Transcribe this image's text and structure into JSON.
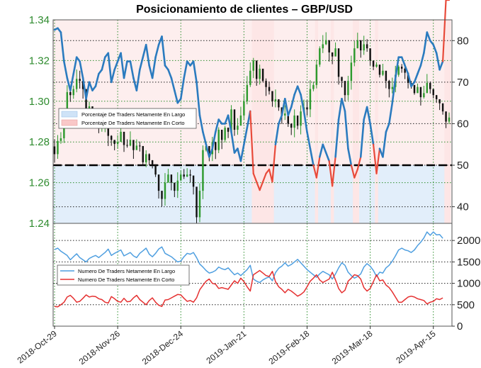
{
  "chart_data": [
    {
      "type": "candlestick-with-line-overlay",
      "title": "Posicionamiento de clientes – GBP/USD",
      "left_axis": {
        "label": "",
        "ylim": [
          1.24,
          1.34
        ],
        "ticks": [
          "1.24",
          "1.26",
          "1.28",
          "1.30",
          "1.32",
          "1.34"
        ]
      },
      "right_axis": {
        "label": "",
        "ylim": [
          36,
          85
        ],
        "ticks": [
          "40",
          "50",
          "60",
          "70",
          "80"
        ]
      },
      "x_ticks": [
        "2018-Oct-29",
        "2018-Nov-26",
        "2018-Dec-24",
        "2019-Jan-21",
        "2019-Feb-18",
        "2019-Mar-18",
        "2019-Apr-15"
      ],
      "x_tick_index": [
        0,
        20,
        40,
        60,
        80,
        100,
        120
      ],
      "reference_line": 50,
      "legend": [
        "Porcentaje De Traders Netamente En Largo",
        "Porcentaje De Traders Netamente En Corto"
      ],
      "legend_position": "upper-left",
      "series_net_long_pct": [
        82.6,
        83,
        82,
        75,
        71,
        68,
        72,
        76,
        75,
        71,
        66,
        70,
        68,
        69,
        72,
        73,
        76,
        77,
        70,
        73,
        75,
        77,
        71,
        75,
        75,
        71,
        68,
        73,
        76,
        79,
        74,
        71,
        76,
        79,
        81,
        74,
        73,
        71,
        68,
        65,
        66,
        71,
        75,
        74,
        75,
        70,
        62,
        58,
        55,
        52,
        54,
        58,
        61,
        60,
        60,
        62,
        58,
        53,
        54,
        51,
        55,
        59,
        63,
        48,
        46,
        44,
        46,
        48,
        49,
        46,
        55,
        60,
        62,
        66,
        62,
        64,
        67,
        69,
        67,
        63,
        58,
        54,
        50,
        47,
        52,
        55,
        53,
        51,
        45,
        52,
        61,
        66,
        63,
        54,
        50,
        47,
        49,
        52,
        61,
        64,
        60,
        55,
        48,
        54,
        52,
        58,
        60,
        65,
        71,
        76,
        76,
        74,
        72,
        69,
        70,
        72,
        74,
        77,
        82,
        80,
        79,
        77,
        73,
        75
      ],
      "candles": [
        [
          1.2778,
          1.274,
          1.2812,
          1.2698
        ],
        [
          1.274,
          1.2805,
          1.2834,
          1.2717
        ],
        [
          1.2805,
          1.2818,
          1.2848,
          1.2791
        ],
        [
          1.2818,
          1.2922,
          1.2963,
          1.2795
        ],
        [
          1.2922,
          1.3045,
          1.3079,
          1.2892
        ],
        [
          1.3045,
          1.303,
          1.3058,
          1.2997
        ],
        [
          1.303,
          1.306,
          1.3077,
          1.3012
        ],
        [
          1.306,
          1.311,
          1.3156,
          1.3044
        ],
        [
          1.311,
          1.31,
          1.315,
          1.3062
        ],
        [
          1.31,
          1.306,
          1.3081,
          1.3013
        ],
        [
          1.306,
          1.296,
          1.298,
          1.2931
        ],
        [
          1.296,
          1.2975,
          1.2998,
          1.2944
        ],
        [
          1.2975,
          1.2925,
          1.2966,
          1.2902
        ],
        [
          1.2925,
          1.288,
          1.2948,
          1.2868
        ],
        [
          1.288,
          1.287,
          1.2911,
          1.2843
        ],
        [
          1.287,
          1.2875,
          1.2902,
          1.285
        ],
        [
          1.2875,
          1.289,
          1.2909,
          1.2848
        ],
        [
          1.289,
          1.283,
          1.285,
          1.278
        ],
        [
          1.283,
          1.281,
          1.2833,
          1.2781
        ],
        [
          1.281,
          1.279,
          1.2801,
          1.2759
        ],
        [
          1.279,
          1.28,
          1.2833,
          1.2766
        ],
        [
          1.28,
          1.285,
          1.2874,
          1.283
        ],
        [
          1.285,
          1.2785,
          1.2799,
          1.2751
        ],
        [
          1.2785,
          1.2782,
          1.2813,
          1.2772
        ],
        [
          1.2782,
          1.281,
          1.2852,
          1.2779
        ],
        [
          1.281,
          1.276,
          1.2795,
          1.2717
        ],
        [
          1.276,
          1.2782,
          1.2813,
          1.2772
        ],
        [
          1.2782,
          1.278,
          1.2802,
          1.2753
        ],
        [
          1.278,
          1.27,
          1.2726,
          1.2682
        ],
        [
          1.27,
          1.274,
          1.2759,
          1.2676
        ],
        [
          1.274,
          1.271,
          1.2744,
          1.2686
        ],
        [
          1.271,
          1.269,
          1.2711,
          1.267
        ],
        [
          1.269,
          1.264,
          1.2687,
          1.2628
        ],
        [
          1.264,
          1.256,
          1.2579,
          1.2522
        ],
        [
          1.256,
          1.252,
          1.2554,
          1.2483
        ],
        [
          1.252,
          1.26,
          1.2647,
          1.2487
        ],
        [
          1.26,
          1.264,
          1.2668,
          1.2613
        ],
        [
          1.264,
          1.26,
          1.2617,
          1.2562
        ],
        [
          1.26,
          1.256,
          1.2578,
          1.2529
        ],
        [
          1.256,
          1.261,
          1.2651,
          1.2525
        ],
        [
          1.261,
          1.264,
          1.2658,
          1.262
        ],
        [
          1.264,
          1.263,
          1.2667,
          1.2618
        ],
        [
          1.263,
          1.264,
          1.2671,
          1.2627
        ],
        [
          1.264,
          1.2635,
          1.2664,
          1.26
        ],
        [
          1.2635,
          1.258,
          1.2621,
          1.2542
        ],
        [
          1.258,
          1.243,
          1.2448,
          1.2397
        ],
        [
          1.243,
          1.256,
          1.2597,
          1.2406
        ],
        [
          1.256,
          1.276,
          1.2783,
          1.2519
        ],
        [
          1.276,
          1.278,
          1.28,
          1.2753
        ],
        [
          1.278,
          1.274,
          1.2749,
          1.2705
        ],
        [
          1.274,
          1.28,
          1.2825,
          1.2706
        ],
        [
          1.28,
          1.276,
          1.2789,
          1.2716
        ],
        [
          1.276,
          1.286,
          1.2872,
          1.2745
        ],
        [
          1.286,
          1.281,
          1.2858,
          1.2765
        ],
        [
          1.281,
          1.287,
          1.2879,
          1.2798
        ],
        [
          1.287,
          1.285,
          1.2871,
          1.2819
        ],
        [
          1.285,
          1.296,
          1.2981,
          1.283
        ],
        [
          1.296,
          1.286,
          1.2875,
          1.283
        ],
        [
          1.286,
          1.288,
          1.2917,
          1.2835
        ],
        [
          1.288,
          1.293,
          1.2973,
          1.289
        ],
        [
          1.293,
          1.3,
          1.3032,
          1.2907
        ],
        [
          1.3,
          1.308,
          1.3124,
          1.2985
        ],
        [
          1.308,
          1.315,
          1.3191,
          1.307
        ],
        [
          1.315,
          1.32,
          1.3213,
          1.3114
        ],
        [
          1.32,
          1.311,
          1.3156,
          1.3076
        ],
        [
          1.311,
          1.316,
          1.318,
          1.3082
        ],
        [
          1.316,
          1.31,
          1.3133,
          1.3093
        ],
        [
          1.31,
          1.307,
          1.3112,
          1.3026
        ],
        [
          1.307,
          1.305,
          1.3097,
          1.3033
        ],
        [
          1.305,
          1.3,
          1.3037,
          1.2973
        ],
        [
          1.3,
          1.301,
          1.3058,
          1.297
        ],
        [
          1.301,
          1.297,
          1.2983,
          1.2953
        ],
        [
          1.297,
          1.293,
          1.297,
          1.2889
        ],
        [
          1.293,
          1.294,
          1.298,
          1.2908
        ],
        [
          1.294,
          1.289,
          1.2922,
          1.2874
        ],
        [
          1.289,
          1.287,
          1.289,
          1.2834
        ],
        [
          1.287,
          1.293,
          1.296,
          1.2823
        ],
        [
          1.293,
          1.288,
          1.2907,
          1.2862
        ],
        [
          1.288,
          1.295,
          1.298,
          1.2837
        ],
        [
          1.295,
          1.297,
          1.3008,
          1.2936
        ],
        [
          1.297,
          1.296,
          1.3005,
          1.2929
        ],
        [
          1.296,
          1.306,
          1.3104,
          1.2922
        ],
        [
          1.306,
          1.308,
          1.3096,
          1.3049
        ],
        [
          1.308,
          1.318,
          1.3204,
          1.3063
        ],
        [
          1.318,
          1.326,
          1.327,
          1.3169
        ],
        [
          1.326,
          1.328,
          1.3325,
          1.3237
        ],
        [
          1.328,
          1.33,
          1.3339,
          1.3276
        ],
        [
          1.33,
          1.324,
          1.3266,
          1.3195
        ],
        [
          1.324,
          1.322,
          1.324,
          1.3182
        ],
        [
          1.322,
          1.326,
          1.3289,
          1.3248
        ],
        [
          1.326,
          1.312,
          1.3166,
          1.3082
        ],
        [
          1.312,
          1.31,
          1.3117,
          1.3068
        ],
        [
          1.31,
          1.303,
          1.3045,
          1.2999
        ],
        [
          1.303,
          1.31,
          1.3125,
          1.3004
        ],
        [
          1.31,
          1.319,
          1.3224,
          1.3057
        ],
        [
          1.319,
          1.326,
          1.3296,
          1.3172
        ],
        [
          1.326,
          1.33,
          1.3337,
          1.3276
        ],
        [
          1.33,
          1.325,
          1.3268,
          1.3214
        ],
        [
          1.325,
          1.328,
          1.3322,
          1.3228
        ],
        [
          1.328,
          1.326,
          1.3305,
          1.3243
        ],
        [
          1.326,
          1.32,
          1.3246,
          1.3176
        ],
        [
          1.32,
          1.317,
          1.3184,
          1.3153
        ],
        [
          1.317,
          1.318,
          1.3192,
          1.3165
        ],
        [
          1.318,
          1.313,
          1.3174,
          1.3117
        ],
        [
          1.313,
          1.315,
          1.3184,
          1.3124
        ],
        [
          1.315,
          1.31,
          1.311,
          1.3064
        ],
        [
          1.31,
          1.306,
          1.3105,
          1.3019
        ],
        [
          1.306,
          1.307,
          1.3116,
          1.3039
        ],
        [
          1.307,
          1.313,
          1.3174,
          1.3044
        ],
        [
          1.313,
          1.317,
          1.3177,
          1.312
        ],
        [
          1.317,
          1.316,
          1.3183,
          1.314
        ],
        [
          1.316,
          1.314,
          1.3186,
          1.3109
        ],
        [
          1.314,
          1.309,
          1.3108,
          1.3063
        ],
        [
          1.309,
          1.308,
          1.31,
          1.3062
        ],
        [
          1.308,
          1.304,
          1.3064,
          1.3032
        ],
        [
          1.304,
          1.307,
          1.3087,
          1.3051
        ],
        [
          1.307,
          1.302,
          1.3032,
          1.2979
        ],
        [
          1.302,
          1.304,
          1.3076,
          1.3013
        ],
        [
          1.304,
          1.309,
          1.3134,
          1.3048
        ],
        [
          1.309,
          1.306,
          1.3097,
          1.3038
        ],
        [
          1.306,
          1.303,
          1.3054,
          1.3014
        ],
        [
          1.303,
          1.301,
          1.3031,
          1.2992
        ],
        [
          1.301,
          1.299,
          1.3004,
          1.2957
        ],
        [
          1.299,
          1.295,
          1.297,
          1.2934
        ],
        [
          1.295,
          1.29,
          1.293,
          1.2868
        ],
        [
          1.29,
          1.292,
          1.2945,
          1.2888
        ]
      ]
    },
    {
      "type": "line",
      "title": "",
      "ylim": [
        0,
        2400
      ],
      "right_axis_ticks": [
        "0",
        "500",
        "1000",
        "1500",
        "2000"
      ],
      "legend": [
        "Numero De Traders Netamente En Largo",
        "Numero De Traders Netamente En Corto"
      ],
      "legend_position": "upper-left",
      "series": [
        {
          "name": "Numero De Traders Netamente En Largo",
          "color": "#4f9fe0",
          "values": [
            1790,
            1820,
            1750,
            1700,
            1650,
            1550,
            1620,
            1690,
            1600,
            1550,
            1500,
            1580,
            1620,
            1650,
            1600,
            1660,
            1720,
            1800,
            1650,
            1700,
            1740,
            1780,
            1640,
            1680,
            1720,
            1640,
            1600,
            1700,
            1760,
            1820,
            1680,
            1620,
            1700,
            1800,
            1850,
            1700,
            1660,
            1620,
            1560,
            1500,
            1520,
            1620,
            1700,
            1680,
            1720,
            1600,
            1450,
            1380,
            1300,
            1240,
            1260,
            1300,
            1380,
            1340,
            1320,
            1360,
            1280,
            1200,
            1240,
            1180,
            1250,
            1320,
            1420,
            1100,
            1050,
            1020,
            1080,
            1120,
            1150,
            1060,
            1250,
            1350,
            1400,
            1480,
            1400,
            1440,
            1500,
            1560,
            1480,
            1400,
            1320,
            1260,
            1200,
            1140,
            1220,
            1280,
            1240,
            1200,
            1100,
            1220,
            1360,
            1480,
            1420,
            1260,
            1180,
            1120,
            1160,
            1220,
            1380,
            1460,
            1400,
            1300,
            1160,
            1260,
            1240,
            1360,
            1420,
            1520,
            1640,
            1780,
            1820,
            1780,
            1760,
            1720,
            1780,
            1880,
            1960,
            2060,
            2200,
            2120,
            2200,
            2130,
            2140,
            2050
          ]
        },
        {
          "name": "Numero De Traders Netamente En Corto",
          "color": "#e53030",
          "values": [
            460,
            450,
            500,
            560,
            680,
            720,
            650,
            560,
            580,
            650,
            730,
            680,
            700,
            690,
            640,
            620,
            560,
            540,
            690,
            640,
            580,
            560,
            650,
            570,
            580,
            660,
            720,
            620,
            560,
            500,
            600,
            660,
            560,
            490,
            460,
            610,
            620,
            660,
            700,
            740,
            730,
            650,
            580,
            600,
            560,
            660,
            850,
            950,
            1050,
            1100,
            1000,
            980,
            880,
            900,
            880,
            860,
            960,
            1060,
            1000,
            1120,
            1040,
            920,
            820,
            1200,
            1250,
            1300,
            1240,
            1180,
            1160,
            1280,
            1040,
            920,
            860,
            780,
            860,
            820,
            760,
            700,
            740,
            800,
            920,
            1050,
            1120,
            1200,
            1080,
            1020,
            1060,
            1100,
            1260,
            1080,
            880,
            780,
            840,
            1050,
            1120,
            1200,
            1180,
            1100,
            900,
            820,
            880,
            1040,
            1200,
            1060,
            1080,
            960,
            900,
            800,
            680,
            560,
            560,
            620,
            680,
            700,
            680,
            640,
            620,
            600,
            520,
            560,
            580,
            640,
            620,
            660
          ]
        }
      ]
    }
  ]
}
